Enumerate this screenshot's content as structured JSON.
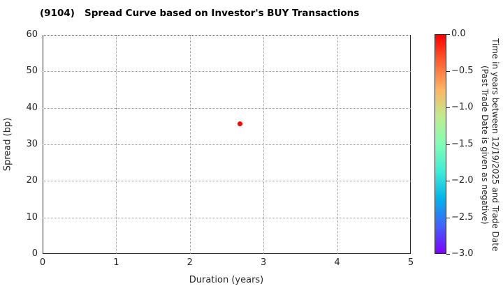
{
  "chart_data": {
    "type": "scatter",
    "title": "(9104)   Spread Curve based on Investor's BUY Transactions",
    "xlabel": "Duration (years)",
    "ylabel": "Spread (bp)",
    "xlim": [
      0,
      5
    ],
    "ylim": [
      0,
      60
    ],
    "x_ticks": [
      "0",
      "1",
      "2",
      "3",
      "4",
      "5"
    ],
    "y_ticks": [
      "0",
      "10",
      "20",
      "30",
      "40",
      "50",
      "60"
    ],
    "grid": "dotted",
    "legend_position": "none",
    "points": [
      {
        "x": 2.68,
        "y": 35.7,
        "time_years": 0.0,
        "color": "#ff0000"
      }
    ],
    "colorbar": {
      "label_line1": "Time in years between 12/19/2025 and Trade Date",
      "label_line2": "(Past Trade Date is given as negative)",
      "tick_labels": [
        "0.0",
        "−0.5",
        "−1.0",
        "−1.5",
        "−2.0",
        "−2.5",
        "−3.0"
      ],
      "vmax": 0.0,
      "vmin": -3.0,
      "colormap": "rainbow (red at 0.0 top, violet at -3.0 bottom)",
      "gradient_stops": [
        "#ff0000",
        "#ff6232",
        "#ffb462",
        "#bfec8e",
        "#80ffb4",
        "#40ecd4",
        "#00b4ec",
        "#4062fa",
        "#8000ff"
      ]
    }
  }
}
